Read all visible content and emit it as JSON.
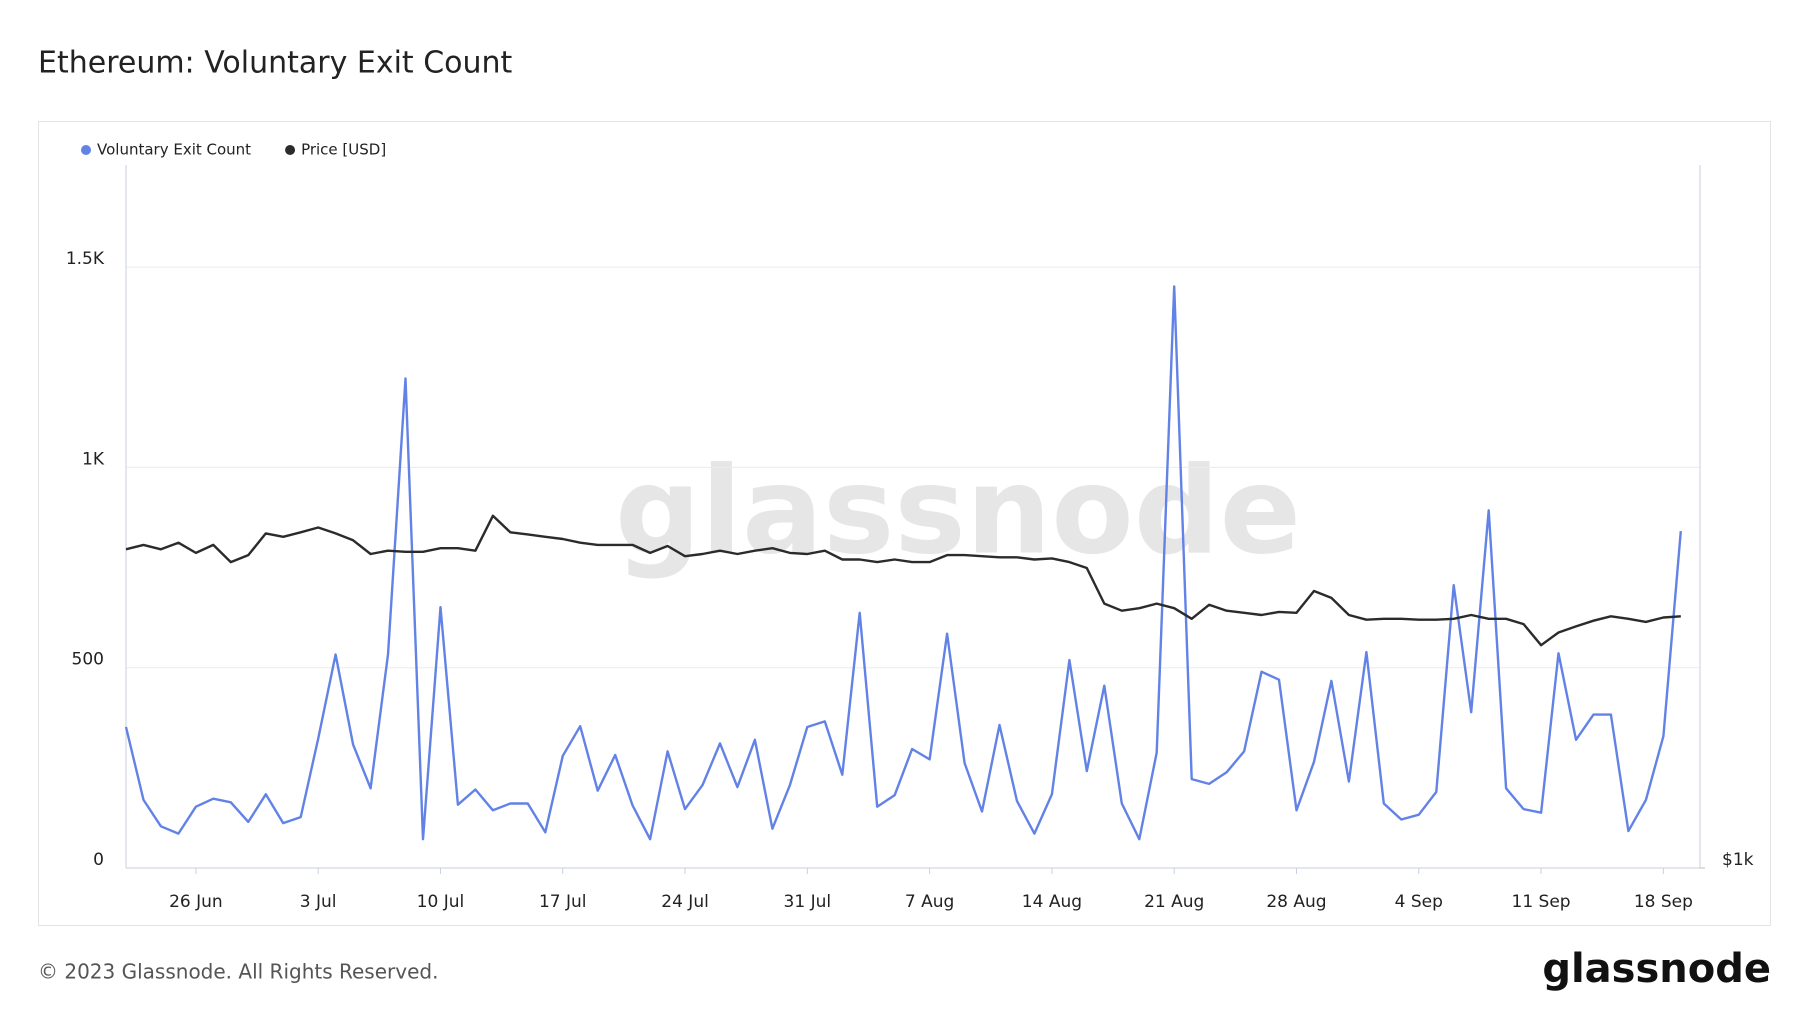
{
  "chart_data": {
    "type": "line",
    "title": "Ethereum: Voluntary Exit Count",
    "watermark": "glassnode",
    "footer": "© 2023 Glassnode. All Rights Reserved.",
    "brand": "glassnode",
    "x": [
      "22 Jun",
      "23 Jun",
      "24 Jun",
      "25 Jun",
      "26 Jun",
      "27 Jun",
      "28 Jun",
      "29 Jun",
      "30 Jun",
      "1 Jul",
      "2 Jul",
      "3 Jul",
      "4 Jul",
      "5 Jul",
      "6 Jul",
      "7 Jul",
      "8 Jul",
      "9 Jul",
      "10 Jul",
      "11 Jul",
      "12 Jul",
      "13 Jul",
      "14 Jul",
      "15 Jul",
      "16 Jul",
      "17 Jul",
      "18 Jul",
      "19 Jul",
      "20 Jul",
      "21 Jul",
      "22 Jul",
      "23 Jul",
      "24 Jul",
      "25 Jul",
      "26 Jul",
      "27 Jul",
      "28 Jul",
      "29 Jul",
      "30 Jul",
      "31 Jul",
      "1 Aug",
      "2 Aug",
      "3 Aug",
      "4 Aug",
      "5 Aug",
      "6 Aug",
      "7 Aug",
      "8 Aug",
      "9 Aug",
      "10 Aug",
      "11 Aug",
      "12 Aug",
      "13 Aug",
      "14 Aug",
      "15 Aug",
      "16 Aug",
      "17 Aug",
      "18 Aug",
      "19 Aug",
      "20 Aug",
      "21 Aug",
      "22 Aug",
      "23 Aug",
      "24 Aug",
      "25 Aug",
      "26 Aug",
      "27 Aug",
      "28 Aug",
      "29 Aug",
      "30 Aug",
      "31 Aug",
      "1 Sep",
      "2 Sep",
      "3 Sep",
      "4 Sep",
      "5 Sep",
      "6 Sep",
      "7 Sep",
      "8 Sep",
      "9 Sep",
      "10 Sep",
      "11 Sep",
      "12 Sep",
      "13 Sep",
      "14 Sep",
      "15 Sep",
      "16 Sep",
      "17 Sep",
      "18 Sep",
      "19 Sep"
    ],
    "xticks": [
      "26 Jun",
      "3 Jul",
      "10 Jul",
      "17 Jul",
      "24 Jul",
      "31 Jul",
      "7 Aug",
      "14 Aug",
      "21 Aug",
      "28 Aug",
      "4 Sep",
      "11 Sep",
      "18 Sep"
    ],
    "ylim": [
      0,
      1755
    ],
    "yticks": [
      0,
      500,
      {
        "value": 1000,
        "label": "1K"
      },
      {
        "value": 1500,
        "label": "1.5K"
      }
    ],
    "y2lim": [
      1000,
      3954
    ],
    "y2log": true,
    "y2ticks": [
      {
        "value": 1000,
        "label": "$1k"
      }
    ],
    "grid": true,
    "series": [
      {
        "name": "Voluntary Exit Count",
        "color": "#6282e6",
        "values": [
          352,
          170,
          104,
          86,
          153,
          173,
          164,
          115,
          184,
          112,
          127,
          323,
          533,
          308,
          199,
          533,
          1222,
          72,
          651,
          158,
          196,
          144,
          161,
          161,
          89,
          280,
          354,
          193,
          282,
          156,
          72,
          291,
          147,
          207,
          311,
          202,
          320,
          98,
          207,
          352,
          366,
          233,
          637,
          153,
          182,
          297,
          271,
          585,
          262,
          141,
          357,
          167,
          86,
          184,
          519,
          242,
          455,
          161,
          72,
          288,
          1452,
          222,
          210,
          239,
          291,
          490,
          470,
          144,
          265,
          467,
          216,
          539,
          161,
          121,
          133,
          190,
          706,
          389,
          893,
          199,
          147,
          138,
          536,
          320,
          383,
          383,
          92,
          170,
          329,
          841
        ]
      },
      {
        "name": "Price [USD]",
        "color": "#2b2b2b",
        "axis": "y2",
        "values": [
          1865,
          1881,
          1865,
          1889,
          1852,
          1881,
          1819,
          1844,
          1924,
          1911,
          1928,
          1946,
          1924,
          1898,
          1848,
          1860,
          1856,
          1856,
          1869,
          1869,
          1860,
          1991,
          1928,
          1920,
          1911,
          1903,
          1889,
          1881,
          1881,
          1881,
          1852,
          1877,
          1840,
          1848,
          1860,
          1848,
          1860,
          1869,
          1852,
          1848,
          1860,
          1828,
          1828,
          1819,
          1828,
          1819,
          1819,
          1844,
          1844,
          1840,
          1836,
          1836,
          1828,
          1832,
          1819,
          1798,
          1677,
          1654,
          1662,
          1677,
          1662,
          1628,
          1673,
          1654,
          1647,
          1640,
          1650,
          1647,
          1719,
          1696,
          1640,
          1625,
          1628,
          1628,
          1625,
          1625,
          1628,
          1640,
          1628,
          1628,
          1611,
          1546,
          1585,
          1604,
          1622,
          1636,
          1628,
          1618,
          1632,
          1636
        ]
      }
    ]
  }
}
